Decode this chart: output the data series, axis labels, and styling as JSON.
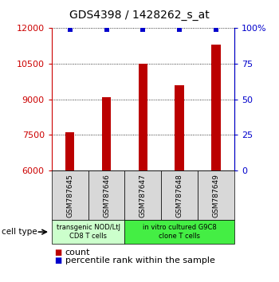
{
  "title": "GDS4398 / 1428262_s_at",
  "samples": [
    "GSM787645",
    "GSM787646",
    "GSM787647",
    "GSM787648",
    "GSM787649"
  ],
  "counts": [
    7600,
    9100,
    10500,
    9600,
    11300
  ],
  "percentiles": [
    99,
    99,
    99,
    99,
    99
  ],
  "ylim_left": [
    6000,
    12000
  ],
  "ylim_right": [
    0,
    100
  ],
  "yticks_left": [
    6000,
    7500,
    9000,
    10500,
    12000
  ],
  "yticks_right": [
    0,
    25,
    50,
    75,
    100
  ],
  "bar_color": "#bb0000",
  "percentile_color": "#0000cc",
  "left_axis_color": "#cc0000",
  "right_axis_color": "#0000cc",
  "grid_color": "#000000",
  "cell_type_groups": [
    {
      "label": "transgenic NOD/LtJ\nCD8 T cells",
      "samples": [
        0,
        1
      ],
      "color": "#ccffcc"
    },
    {
      "label": "in vitro cultured G9C8\nclone T cells",
      "samples": [
        2,
        3,
        4
      ],
      "color": "#44ee44"
    }
  ],
  "cell_type_label": "cell type",
  "legend_count_label": "count",
  "legend_percentile_label": "percentile rank within the sample",
  "title_fontsize": 10,
  "tick_fontsize": 8,
  "sample_label_fontsize": 6.5,
  "cell_type_fontsize": 6,
  "legend_fontsize": 8
}
